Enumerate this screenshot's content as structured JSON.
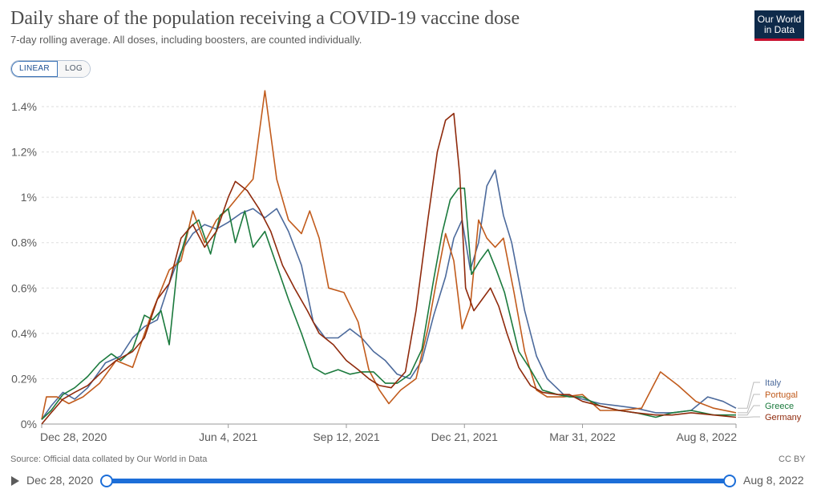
{
  "header": {
    "title": "Daily share of the population receiving a COVID-19 vaccine dose",
    "subtitle": "7-day rolling average. All doses, including boosters, are counted individually.",
    "logo_line1": "Our World",
    "logo_line2": "in Data"
  },
  "controls": {
    "linear_label": "LINEAR",
    "log_label": "LOG",
    "active": "linear"
  },
  "footer": {
    "source": "Source: Official data collated by Our World in Data",
    "license": "CC BY"
  },
  "timeline": {
    "start": "Dec 28, 2020",
    "end": "Aug 8, 2022"
  },
  "chart_data": {
    "type": "line",
    "title": "Daily share of the population receiving a COVID-19 vaccine dose",
    "subtitle": "7-day rolling average. All doses, including boosters, are counted individually.",
    "x_range": [
      "2020-12-28",
      "2022-08-08"
    ],
    "ylim": [
      0,
      1.4
    ],
    "y_unit": "%",
    "y_ticks": [
      {
        "value": 0,
        "label": "0%"
      },
      {
        "value": 0.2,
        "label": "0.2%"
      },
      {
        "value": 0.4,
        "label": "0.4%"
      },
      {
        "value": 0.6,
        "label": "0.6%"
      },
      {
        "value": 0.8,
        "label": "0.8%"
      },
      {
        "value": 1.0,
        "label": "1%"
      },
      {
        "value": 1.2,
        "label": "1.2%"
      },
      {
        "value": 1.4,
        "label": "1.4%"
      }
    ],
    "x_ticks": [
      {
        "date": "2020-12-28",
        "label": "Dec 28, 2020"
      },
      {
        "date": "2021-06-04",
        "label": "Jun 4, 2021"
      },
      {
        "date": "2021-09-12",
        "label": "Sep 12, 2021"
      },
      {
        "date": "2021-12-21",
        "label": "Dec 21, 2021"
      },
      {
        "date": "2022-03-31",
        "label": "Mar 31, 2022"
      },
      {
        "date": "2022-08-08",
        "label": "Aug 8, 2022"
      }
    ],
    "grid": "horizontal-dashed",
    "legend": "right",
    "series": [
      {
        "name": "Italy",
        "color": "#4c6a9c",
        "points": [
          [
            "2020-12-28",
            0.02
          ],
          [
            "2021-01-05",
            0.08
          ],
          [
            "2021-01-15",
            0.14
          ],
          [
            "2021-01-25",
            0.11
          ],
          [
            "2021-02-05",
            0.16
          ],
          [
            "2021-02-20",
            0.27
          ],
          [
            "2021-03-05",
            0.3
          ],
          [
            "2021-03-15",
            0.38
          ],
          [
            "2021-03-25",
            0.43
          ],
          [
            "2021-04-05",
            0.46
          ],
          [
            "2021-04-15",
            0.62
          ],
          [
            "2021-04-25",
            0.76
          ],
          [
            "2021-05-05",
            0.84
          ],
          [
            "2021-05-15",
            0.88
          ],
          [
            "2021-05-25",
            0.86
          ],
          [
            "2021-06-04",
            0.89
          ],
          [
            "2021-06-15",
            0.93
          ],
          [
            "2021-06-25",
            0.95
          ],
          [
            "2021-07-05",
            0.91
          ],
          [
            "2021-07-15",
            0.95
          ],
          [
            "2021-07-25",
            0.85
          ],
          [
            "2021-08-05",
            0.7
          ],
          [
            "2021-08-15",
            0.45
          ],
          [
            "2021-08-25",
            0.38
          ],
          [
            "2021-09-05",
            0.38
          ],
          [
            "2021-09-15",
            0.42
          ],
          [
            "2021-09-25",
            0.38
          ],
          [
            "2021-10-05",
            0.32
          ],
          [
            "2021-10-15",
            0.28
          ],
          [
            "2021-10-25",
            0.22
          ],
          [
            "2021-11-05",
            0.2
          ],
          [
            "2021-11-15",
            0.28
          ],
          [
            "2021-11-25",
            0.48
          ],
          [
            "2021-12-05",
            0.65
          ],
          [
            "2021-12-12",
            0.82
          ],
          [
            "2021-12-19",
            0.9
          ],
          [
            "2021-12-26",
            0.68
          ],
          [
            "2022-01-02",
            0.8
          ],
          [
            "2022-01-09",
            1.05
          ],
          [
            "2022-01-16",
            1.12
          ],
          [
            "2022-01-23",
            0.92
          ],
          [
            "2022-01-30",
            0.8
          ],
          [
            "2022-02-10",
            0.5
          ],
          [
            "2022-02-20",
            0.3
          ],
          [
            "2022-03-01",
            0.2
          ],
          [
            "2022-03-15",
            0.13
          ],
          [
            "2022-03-31",
            0.11
          ],
          [
            "2022-04-15",
            0.09
          ],
          [
            "2022-05-01",
            0.08
          ],
          [
            "2022-05-15",
            0.07
          ],
          [
            "2022-06-01",
            0.05
          ],
          [
            "2022-06-15",
            0.05
          ],
          [
            "2022-07-01",
            0.06
          ],
          [
            "2022-07-15",
            0.12
          ],
          [
            "2022-07-28",
            0.1
          ],
          [
            "2022-08-08",
            0.07
          ]
        ]
      },
      {
        "name": "Portugal",
        "color": "#c15b1c",
        "points": [
          [
            "2020-12-28",
            0.02
          ],
          [
            "2021-01-01",
            0.12
          ],
          [
            "2021-01-10",
            0.12
          ],
          [
            "2021-01-20",
            0.09
          ],
          [
            "2021-02-01",
            0.12
          ],
          [
            "2021-02-15",
            0.18
          ],
          [
            "2021-03-01",
            0.28
          ],
          [
            "2021-03-15",
            0.25
          ],
          [
            "2021-04-01",
            0.5
          ],
          [
            "2021-04-15",
            0.68
          ],
          [
            "2021-04-25",
            0.72
          ],
          [
            "2021-05-05",
            0.94
          ],
          [
            "2021-05-15",
            0.8
          ],
          [
            "2021-05-25",
            0.9
          ],
          [
            "2021-06-04",
            0.95
          ],
          [
            "2021-06-15",
            1.02
          ],
          [
            "2021-06-25",
            1.08
          ],
          [
            "2021-07-05",
            1.47
          ],
          [
            "2021-07-15",
            1.08
          ],
          [
            "2021-07-25",
            0.9
          ],
          [
            "2021-08-05",
            0.84
          ],
          [
            "2021-08-12",
            0.94
          ],
          [
            "2021-08-20",
            0.82
          ],
          [
            "2021-08-28",
            0.6
          ],
          [
            "2021-09-10",
            0.58
          ],
          [
            "2021-09-22",
            0.45
          ],
          [
            "2021-10-01",
            0.24
          ],
          [
            "2021-10-10",
            0.15
          ],
          [
            "2021-10-18",
            0.09
          ],
          [
            "2021-10-28",
            0.15
          ],
          [
            "2021-11-10",
            0.2
          ],
          [
            "2021-11-20",
            0.42
          ],
          [
            "2021-11-28",
            0.65
          ],
          [
            "2021-12-05",
            0.84
          ],
          [
            "2021-12-12",
            0.72
          ],
          [
            "2021-12-19",
            0.42
          ],
          [
            "2021-12-26",
            0.52
          ],
          [
            "2022-01-02",
            0.9
          ],
          [
            "2022-01-09",
            0.82
          ],
          [
            "2022-01-16",
            0.78
          ],
          [
            "2022-01-23",
            0.82
          ],
          [
            "2022-02-01",
            0.58
          ],
          [
            "2022-02-10",
            0.32
          ],
          [
            "2022-02-20",
            0.15
          ],
          [
            "2022-03-01",
            0.12
          ],
          [
            "2022-03-15",
            0.12
          ],
          [
            "2022-03-31",
            0.13
          ],
          [
            "2022-04-15",
            0.06
          ],
          [
            "2022-05-01",
            0.06
          ],
          [
            "2022-05-20",
            0.07
          ],
          [
            "2022-06-05",
            0.23
          ],
          [
            "2022-06-20",
            0.17
          ],
          [
            "2022-07-05",
            0.1
          ],
          [
            "2022-07-20",
            0.07
          ],
          [
            "2022-08-08",
            0.05
          ]
        ]
      },
      {
        "name": "Greece",
        "color": "#1b7a3d",
        "points": [
          [
            "2020-12-28",
            0.02
          ],
          [
            "2021-01-05",
            0.06
          ],
          [
            "2021-01-15",
            0.13
          ],
          [
            "2021-01-25",
            0.16
          ],
          [
            "2021-02-05",
            0.21
          ],
          [
            "2021-02-15",
            0.27
          ],
          [
            "2021-02-25",
            0.31
          ],
          [
            "2021-03-05",
            0.28
          ],
          [
            "2021-03-15",
            0.33
          ],
          [
            "2021-03-25",
            0.48
          ],
          [
            "2021-04-01",
            0.46
          ],
          [
            "2021-04-08",
            0.5
          ],
          [
            "2021-04-15",
            0.35
          ],
          [
            "2021-04-22",
            0.7
          ],
          [
            "2021-05-01",
            0.86
          ],
          [
            "2021-05-10",
            0.9
          ],
          [
            "2021-05-20",
            0.75
          ],
          [
            "2021-05-28",
            0.92
          ],
          [
            "2021-06-04",
            0.95
          ],
          [
            "2021-06-10",
            0.8
          ],
          [
            "2021-06-18",
            0.94
          ],
          [
            "2021-06-25",
            0.78
          ],
          [
            "2021-07-05",
            0.85
          ],
          [
            "2021-07-15",
            0.7
          ],
          [
            "2021-07-25",
            0.55
          ],
          [
            "2021-08-05",
            0.4
          ],
          [
            "2021-08-15",
            0.25
          ],
          [
            "2021-08-25",
            0.22
          ],
          [
            "2021-09-05",
            0.24
          ],
          [
            "2021-09-15",
            0.22
          ],
          [
            "2021-09-25",
            0.23
          ],
          [
            "2021-10-05",
            0.23
          ],
          [
            "2021-10-15",
            0.18
          ],
          [
            "2021-10-25",
            0.18
          ],
          [
            "2021-11-05",
            0.22
          ],
          [
            "2021-11-15",
            0.33
          ],
          [
            "2021-11-25",
            0.64
          ],
          [
            "2021-12-02",
            0.84
          ],
          [
            "2021-12-09",
            0.99
          ],
          [
            "2021-12-16",
            1.04
          ],
          [
            "2021-12-21",
            1.04
          ],
          [
            "2021-12-27",
            0.66
          ],
          [
            "2022-01-03",
            0.72
          ],
          [
            "2022-01-10",
            0.77
          ],
          [
            "2022-01-17",
            0.68
          ],
          [
            "2022-01-24",
            0.58
          ],
          [
            "2022-02-05",
            0.32
          ],
          [
            "2022-02-15",
            0.24
          ],
          [
            "2022-02-25",
            0.15
          ],
          [
            "2022-03-10",
            0.13
          ],
          [
            "2022-03-20",
            0.12
          ],
          [
            "2022-03-31",
            0.12
          ],
          [
            "2022-04-15",
            0.08
          ],
          [
            "2022-05-01",
            0.06
          ],
          [
            "2022-05-15",
            0.05
          ],
          [
            "2022-06-01",
            0.03
          ],
          [
            "2022-06-15",
            0.05
          ],
          [
            "2022-07-01",
            0.06
          ],
          [
            "2022-07-20",
            0.04
          ],
          [
            "2022-08-08",
            0.04
          ]
        ]
      },
      {
        "name": "Germany",
        "color": "#8f2a0c",
        "points": [
          [
            "2020-12-28",
            0.0
          ],
          [
            "2021-01-05",
            0.05
          ],
          [
            "2021-01-15",
            0.11
          ],
          [
            "2021-01-25",
            0.14
          ],
          [
            "2021-02-05",
            0.17
          ],
          [
            "2021-02-15",
            0.22
          ],
          [
            "2021-03-01",
            0.28
          ],
          [
            "2021-03-15",
            0.32
          ],
          [
            "2021-03-25",
            0.38
          ],
          [
            "2021-04-05",
            0.55
          ],
          [
            "2021-04-15",
            0.62
          ],
          [
            "2021-04-25",
            0.82
          ],
          [
            "2021-05-05",
            0.88
          ],
          [
            "2021-05-15",
            0.78
          ],
          [
            "2021-05-25",
            0.85
          ],
          [
            "2021-06-04",
            1.0
          ],
          [
            "2021-06-10",
            1.07
          ],
          [
            "2021-06-20",
            1.03
          ],
          [
            "2021-06-30",
            0.95
          ],
          [
            "2021-07-10",
            0.85
          ],
          [
            "2021-07-20",
            0.7
          ],
          [
            "2021-07-30",
            0.6
          ],
          [
            "2021-08-10",
            0.5
          ],
          [
            "2021-08-20",
            0.4
          ],
          [
            "2021-09-01",
            0.35
          ],
          [
            "2021-09-12",
            0.28
          ],
          [
            "2021-09-22",
            0.24
          ],
          [
            "2021-10-01",
            0.2
          ],
          [
            "2021-10-10",
            0.17
          ],
          [
            "2021-10-20",
            0.16
          ],
          [
            "2021-11-01",
            0.23
          ],
          [
            "2021-11-10",
            0.5
          ],
          [
            "2021-11-20",
            0.9
          ],
          [
            "2021-11-28",
            1.2
          ],
          [
            "2021-12-05",
            1.34
          ],
          [
            "2021-12-12",
            1.37
          ],
          [
            "2021-12-17",
            1.1
          ],
          [
            "2021-12-22",
            0.6
          ],
          [
            "2021-12-29",
            0.5
          ],
          [
            "2022-01-05",
            0.55
          ],
          [
            "2022-01-12",
            0.6
          ],
          [
            "2022-01-19",
            0.52
          ],
          [
            "2022-01-26",
            0.4
          ],
          [
            "2022-02-05",
            0.25
          ],
          [
            "2022-02-15",
            0.17
          ],
          [
            "2022-02-25",
            0.14
          ],
          [
            "2022-03-10",
            0.13
          ],
          [
            "2022-03-20",
            0.13
          ],
          [
            "2022-03-31",
            0.1
          ],
          [
            "2022-04-15",
            0.08
          ],
          [
            "2022-05-01",
            0.06
          ],
          [
            "2022-05-15",
            0.05
          ],
          [
            "2022-06-01",
            0.04
          ],
          [
            "2022-06-15",
            0.04
          ],
          [
            "2022-07-01",
            0.05
          ],
          [
            "2022-07-20",
            0.04
          ],
          [
            "2022-08-08",
            0.03
          ]
        ]
      }
    ]
  }
}
